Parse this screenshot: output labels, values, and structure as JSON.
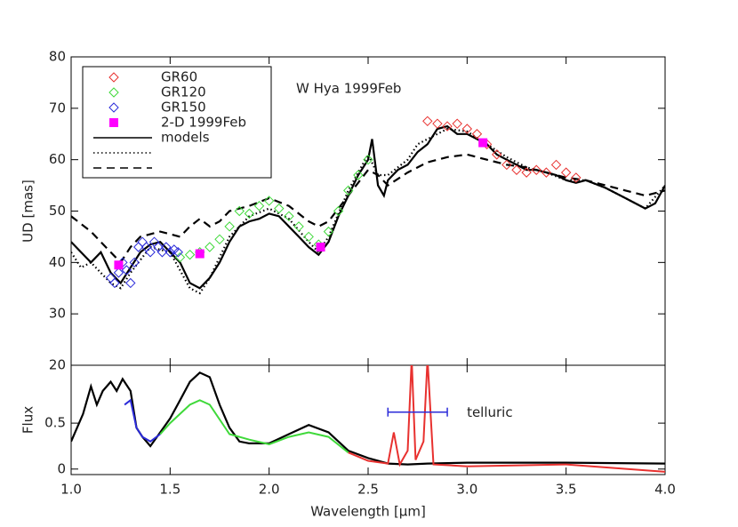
{
  "chart_data": [
    {
      "type": "line",
      "ylabel": "UD [mas]",
      "annotation": "W Hya 1999Feb",
      "xlim": [
        1.0,
        4.0
      ],
      "xticks": [
        1.0,
        1.5,
        2.0,
        2.5,
        3.0,
        3.5,
        4.0
      ],
      "ylim": [
        20,
        80
      ],
      "yticks": [
        20,
        30,
        40,
        50,
        60,
        70,
        80
      ],
      "legend": "upper left",
      "series": [
        {
          "name": "GR60",
          "style": "markers",
          "marker": "diamond",
          "color": "#e8312f",
          "x": [
            2.8,
            2.85,
            2.9,
            2.95,
            3.0,
            3.05,
            3.1,
            3.15,
            3.2,
            3.25,
            3.3,
            3.35,
            3.4,
            3.45,
            3.5,
            3.55
          ],
          "values": [
            67.5,
            67,
            66.5,
            67,
            66,
            65,
            63,
            61,
            59,
            58,
            57.5,
            58,
            57.5,
            59,
            57.5,
            56.5
          ]
        },
        {
          "name": "GR120",
          "style": "markers",
          "marker": "diamond",
          "color": "#3fd93a",
          "x": [
            1.55,
            1.6,
            1.65,
            1.7,
            1.75,
            1.8,
            1.85,
            1.9,
            1.95,
            2.0,
            2.05,
            2.1,
            2.15,
            2.2,
            2.25,
            2.3,
            2.35,
            2.4,
            2.45,
            2.5
          ],
          "values": [
            41,
            41.5,
            42,
            43,
            44.5,
            47,
            50,
            49.5,
            51,
            52,
            50.5,
            49,
            47,
            45,
            43.5,
            46,
            50,
            54,
            57,
            60
          ]
        },
        {
          "name": "GR150",
          "style": "markers",
          "marker": "diamond",
          "color": "#2b2bd9",
          "x": [
            1.2,
            1.22,
            1.24,
            1.26,
            1.28,
            1.3,
            1.32,
            1.34,
            1.36,
            1.38,
            1.4,
            1.42,
            1.44,
            1.46,
            1.48,
            1.5,
            1.52,
            1.54
          ],
          "values": [
            37,
            36,
            38,
            40,
            38.5,
            36,
            40,
            43,
            44,
            43,
            42,
            44,
            43,
            42,
            43,
            42,
            42.5,
            42
          ]
        },
        {
          "name": "2-D 1999Feb",
          "style": "markers",
          "marker": "square",
          "color": "#ff00ff",
          "x": [
            1.24,
            1.65,
            2.26,
            3.08
          ],
          "values": [
            39.5,
            41.7,
            43,
            63.3
          ]
        },
        {
          "name": "models",
          "style": "line",
          "dash": "solid",
          "color": "#000000",
          "x": [
            1.0,
            1.05,
            1.1,
            1.15,
            1.2,
            1.25,
            1.3,
            1.35,
            1.4,
            1.45,
            1.5,
            1.55,
            1.6,
            1.65,
            1.7,
            1.75,
            1.8,
            1.85,
            1.9,
            1.95,
            2.0,
            2.05,
            2.1,
            2.15,
            2.2,
            2.25,
            2.3,
            2.35,
            2.4,
            2.45,
            2.5,
            2.52,
            2.55,
            2.58,
            2.6,
            2.65,
            2.7,
            2.75,
            2.8,
            2.85,
            2.9,
            2.95,
            3.0,
            3.05,
            3.1,
            3.15,
            3.2,
            3.25,
            3.3,
            3.35,
            3.4,
            3.45,
            3.5,
            3.55,
            3.6,
            3.7,
            3.8,
            3.9,
            3.95,
            4.0
          ],
          "values": [
            44,
            42,
            40,
            42,
            38,
            36,
            39,
            42,
            43.5,
            44,
            42,
            40,
            36,
            35,
            37,
            40,
            44,
            47,
            48,
            48.5,
            49.5,
            49,
            47,
            45,
            43,
            41.5,
            44,
            49,
            53,
            57,
            60,
            64,
            55,
            53,
            56,
            58,
            59,
            61.5,
            63,
            66,
            66.5,
            65,
            65,
            64,
            63,
            61,
            60,
            59,
            58,
            58,
            57.5,
            57,
            56,
            55.5,
            56,
            54.5,
            52.5,
            50.5,
            51.5,
            55
          ]
        },
        {
          "style": "line",
          "dash": "dotted",
          "color": "#000000",
          "x": [
            1.0,
            1.05,
            1.1,
            1.2,
            1.25,
            1.3,
            1.4,
            1.5,
            1.6,
            1.65,
            1.7,
            1.8,
            1.9,
            2.0,
            2.1,
            2.2,
            2.25,
            2.3,
            2.4,
            2.5,
            2.55,
            2.6,
            2.7,
            2.75,
            2.8,
            2.9,
            3.0,
            3.1,
            3.2,
            3.3,
            3.4,
            3.5,
            3.6,
            3.7,
            3.8,
            3.9,
            4.0
          ],
          "values": [
            42,
            39,
            40,
            36,
            35,
            38,
            43,
            42,
            35,
            34,
            37,
            45,
            49,
            50.5,
            48.5,
            44,
            42,
            45,
            54,
            61,
            57,
            57,
            60,
            63,
            64,
            66,
            65.5,
            63,
            60.5,
            58.5,
            57.5,
            56,
            56,
            54.5,
            52.5,
            50.5,
            55
          ]
        },
        {
          "style": "line",
          "dash": "dashed",
          "color": "#000000",
          "x": [
            1.0,
            1.1,
            1.2,
            1.25,
            1.3,
            1.35,
            1.45,
            1.55,
            1.6,
            1.65,
            1.7,
            1.75,
            1.8,
            1.9,
            2.0,
            2.1,
            2.2,
            2.25,
            2.3,
            2.4,
            2.5,
            2.55,
            2.6,
            2.7,
            2.8,
            2.9,
            3.0,
            3.1,
            3.2,
            3.3,
            3.4,
            3.5,
            3.6,
            3.7,
            3.8,
            3.9,
            4.0
          ],
          "values": [
            49,
            46,
            42,
            40,
            43,
            45,
            46,
            45,
            47,
            48.5,
            47,
            48,
            50,
            51,
            52.5,
            51,
            48,
            47,
            48,
            53,
            58,
            57,
            55,
            57.5,
            59.5,
            60.5,
            61,
            60,
            59,
            58.5,
            57.5,
            56.5,
            56,
            55,
            54,
            53,
            54
          ]
        }
      ]
    },
    {
      "type": "line",
      "xlabel": "Wavelength [μm]",
      "ylabel": "Flux",
      "xlim": [
        1.0,
        4.0
      ],
      "xticks": [
        {
          "value": 1.0,
          "label": "1.0"
        },
        1.5,
        {
          "value": 2.0,
          "label": "2.0"
        },
        2.5,
        {
          "value": 3.0,
          "label": "3.0"
        },
        3.5,
        {
          "value": 4.0,
          "label": "4.0"
        }
      ],
      "ylim": [
        -0.06,
        1.13
      ],
      "yticks": [
        0,
        0.5
      ],
      "telluric": {
        "label": "telluric",
        "x": [
          2.6,
          2.9
        ],
        "y": 0.62,
        "color": "#2b2bd9"
      },
      "series": [
        {
          "style": "line",
          "dash": "solid",
          "color": "#000000",
          "x": [
            1.0,
            1.03,
            1.06,
            1.1,
            1.13,
            1.16,
            1.2,
            1.23,
            1.26,
            1.3,
            1.33,
            1.36,
            1.4,
            1.45,
            1.5,
            1.55,
            1.6,
            1.65,
            1.7,
            1.75,
            1.8,
            1.85,
            1.9,
            2.0,
            2.1,
            2.2,
            2.3,
            2.4,
            2.5,
            2.6,
            2.7,
            2.8,
            3.0,
            3.5,
            4.0
          ],
          "values": [
            0.3,
            0.45,
            0.6,
            0.9,
            0.7,
            0.85,
            0.95,
            0.85,
            0.98,
            0.85,
            0.45,
            0.35,
            0.25,
            0.4,
            0.55,
            0.75,
            0.95,
            1.05,
            1.0,
            0.7,
            0.45,
            0.3,
            0.28,
            0.28,
            0.38,
            0.48,
            0.4,
            0.2,
            0.12,
            0.06,
            0.05,
            0.06,
            0.07,
            0.07,
            0.06
          ]
        },
        {
          "style": "line",
          "dash": "solid",
          "color": "#2b2bd9",
          "width": 2,
          "x": [
            1.27,
            1.3,
            1.33,
            1.36,
            1.4,
            1.45
          ],
          "values": [
            0.7,
            0.75,
            0.45,
            0.35,
            0.3,
            0.38
          ]
        },
        {
          "style": "line",
          "dash": "solid",
          "color": "#3fd93a",
          "width": 2,
          "x": [
            1.45,
            1.5,
            1.6,
            1.65,
            1.7,
            1.8,
            1.9,
            2.0,
            2.1,
            2.2,
            2.3,
            2.4
          ],
          "values": [
            0.38,
            0.5,
            0.7,
            0.75,
            0.7,
            0.38,
            0.32,
            0.27,
            0.35,
            0.4,
            0.35,
            0.18
          ]
        },
        {
          "style": "line",
          "dash": "solid",
          "color": "#e8312f",
          "width": 2,
          "x": [
            2.4,
            2.5,
            2.6,
            2.63,
            2.66,
            2.7,
            2.72,
            2.74,
            2.78,
            2.8,
            2.83,
            3.0,
            3.5,
            4.0
          ],
          "values": [
            0.18,
            0.09,
            0.06,
            0.4,
            0.05,
            0.2,
            1.2,
            0.1,
            0.3,
            1.2,
            0.05,
            0.03,
            0.05,
            -0.03
          ]
        }
      ]
    }
  ]
}
